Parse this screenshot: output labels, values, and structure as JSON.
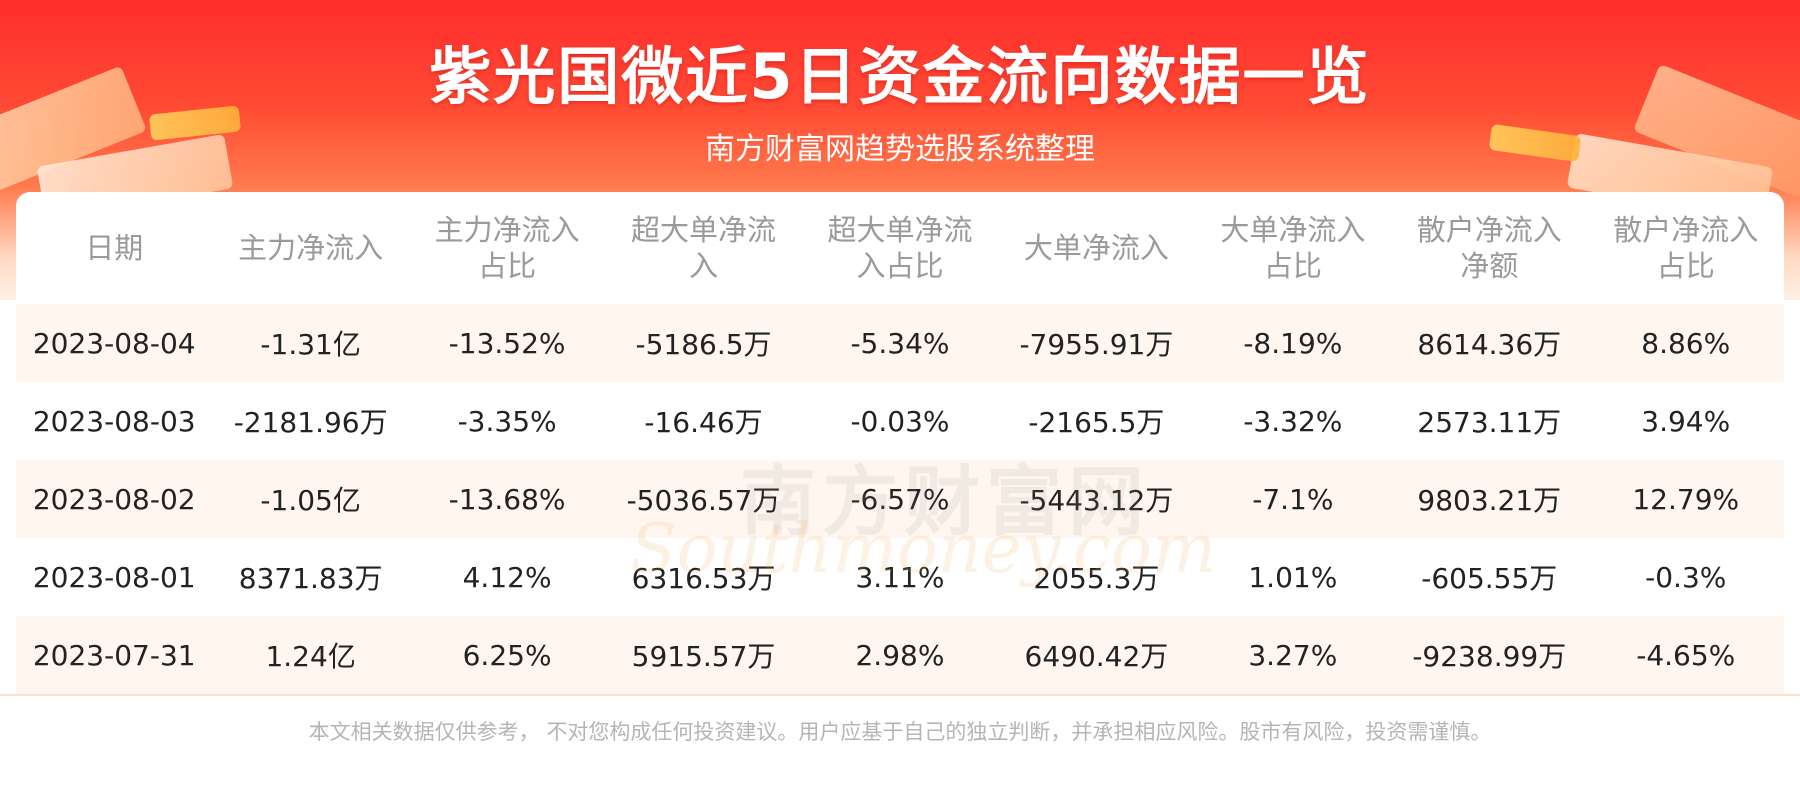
{
  "header": {
    "title": "紫光国微近5日资金流向数据一览",
    "subtitle": "南方财富网趋势选股系统整理"
  },
  "table": {
    "columns": [
      "日期",
      "主力净流入",
      "主力净流入\n占比",
      "超大单净流\n入",
      "超大单净流\n入占比",
      "大单净流入",
      "大单净流入\n占比",
      "散户净流入\n净额",
      "散户净流入\n占比"
    ],
    "rows": [
      [
        "2023-08-04",
        "-1.31亿",
        "-13.52%",
        "-5186.5万",
        "-5.34%",
        "-7955.91万",
        "-8.19%",
        "8614.36万",
        "8.86%"
      ],
      [
        "2023-08-03",
        "-2181.96万",
        "-3.35%",
        "-16.46万",
        "-0.03%",
        "-2165.5万",
        "-3.32%",
        "2573.11万",
        "3.94%"
      ],
      [
        "2023-08-02",
        "-1.05亿",
        "-13.68%",
        "-5036.57万",
        "-6.57%",
        "-5443.12万",
        "-7.1%",
        "9803.21万",
        "12.79%"
      ],
      [
        "2023-08-01",
        "8371.83万",
        "4.12%",
        "6316.53万",
        "3.11%",
        "2055.3万",
        "1.01%",
        "-605.55万",
        "-0.3%"
      ],
      [
        "2023-07-31",
        "1.24亿",
        "6.25%",
        "5915.57万",
        "2.98%",
        "6490.42万",
        "3.27%",
        "-9238.99万",
        "-4.65%"
      ]
    ]
  },
  "watermark": {
    "cn": "南方财富网",
    "en": "Southmoney.com"
  },
  "footer": {
    "disclaimer": "本文相关数据仅供参考， 不对您构成任何投资建议。用户应基于自己的独立判断，并承担相应风险。股市有风险，投资需谨慎。"
  },
  "colors": {
    "banner_red": "#ff2d2d",
    "row_stripe": "#fff7ef",
    "header_text": "#9a9a9a",
    "cell_text": "#222222"
  }
}
